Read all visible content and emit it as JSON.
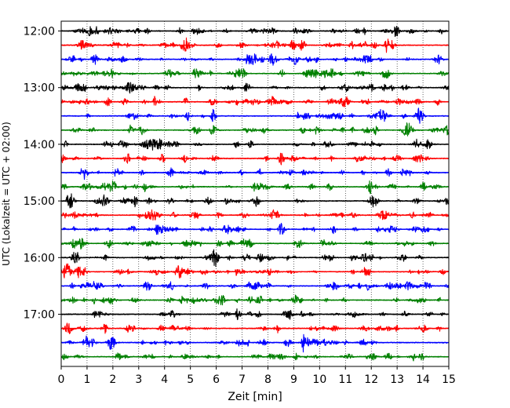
{
  "chart_data": {
    "type": "line",
    "chart_kind": "helicorder",
    "title": "",
    "xlabel": "Zeit  [min]",
    "ylabel": "UTC (Lokalzeit = UTC + 02:00)",
    "xlim": [
      0,
      15
    ],
    "x_ticks": [
      "0",
      "1",
      "2",
      "3",
      "4",
      "5",
      "6",
      "7",
      "8",
      "9",
      "10",
      "11",
      "12",
      "13",
      "14",
      "15"
    ],
    "vertical_grid": true,
    "grid_style": "dotted",
    "trace_interval_minutes": 15,
    "y_ticks": [
      "12:00",
      "13:00",
      "14:00",
      "15:00",
      "16:00",
      "17:00"
    ],
    "trace_colors": [
      "#000000",
      "#ff0000",
      "#0000ff",
      "#008000"
    ],
    "traces": [
      {
        "start": "12:00",
        "color": "#000000"
      },
      {
        "start": "12:15",
        "color": "#ff0000"
      },
      {
        "start": "12:30",
        "color": "#0000ff"
      },
      {
        "start": "12:45",
        "color": "#008000"
      },
      {
        "start": "13:00",
        "color": "#000000"
      },
      {
        "start": "13:15",
        "color": "#ff0000"
      },
      {
        "start": "13:30",
        "color": "#0000ff"
      },
      {
        "start": "13:45",
        "color": "#008000"
      },
      {
        "start": "14:00",
        "color": "#000000"
      },
      {
        "start": "14:15",
        "color": "#ff0000"
      },
      {
        "start": "14:30",
        "color": "#0000ff"
      },
      {
        "start": "14:45",
        "color": "#008000"
      },
      {
        "start": "15:00",
        "color": "#000000"
      },
      {
        "start": "15:15",
        "color": "#ff0000"
      },
      {
        "start": "15:30",
        "color": "#0000ff"
      },
      {
        "start": "15:45",
        "color": "#008000"
      },
      {
        "start": "16:00",
        "color": "#000000"
      },
      {
        "start": "16:15",
        "color": "#ff0000"
      },
      {
        "start": "16:30",
        "color": "#0000ff"
      },
      {
        "start": "16:45",
        "color": "#008000"
      },
      {
        "start": "17:00",
        "color": "#000000"
      },
      {
        "start": "17:15",
        "color": "#ff0000"
      },
      {
        "start": "17:30",
        "color": "#0000ff",
        "event": {
          "minute": 9.35,
          "amplitude": "large"
        }
      },
      {
        "start": "17:45",
        "color": "#008000"
      }
    ]
  }
}
